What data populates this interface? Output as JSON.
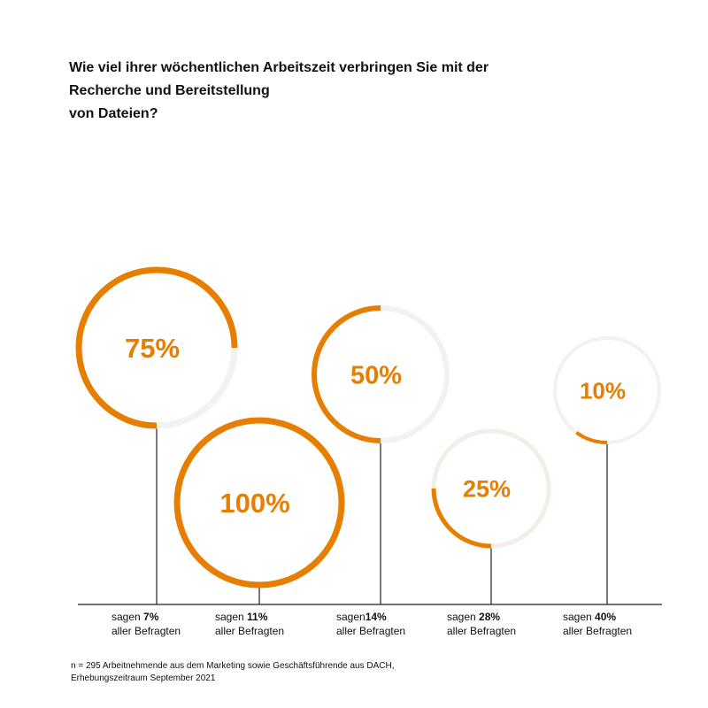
{
  "title_lines": [
    "Wie viel ihrer wöchentlichen Arbeitszeit verbringen Sie mit der",
    "Recherche und Bereitstellung",
    "von Dateien?"
  ],
  "colors": {
    "accent": "#E67E00",
    "track": "#F2F2F2",
    "track_alt": "#F4EEE8",
    "axis": "#222222"
  },
  "chart_data": {
    "type": "pie",
    "style": "progress-rings",
    "categories": [
      "75%",
      "100%",
      "50%",
      "25%",
      "10%"
    ],
    "values": [
      75,
      100,
      50,
      25,
      10
    ],
    "share_of_respondents": [
      7,
      11,
      14,
      28,
      40
    ],
    "captions": [
      {
        "pre": "sagen ",
        "value": "7%",
        "post": "aller Befragten"
      },
      {
        "pre": "sagen ",
        "value": "11%",
        "post": "aller Befragten"
      },
      {
        "pre": "sagen",
        "value": "14%",
        "post": "aller Befragten"
      },
      {
        "pre": "sagen ",
        "value": "28%",
        "post": "aller Befragten"
      },
      {
        "pre": "sagen ",
        "value": "40%",
        "post": "aller Befragten"
      }
    ],
    "ring_labels": [
      "75%",
      "100%",
      "50%",
      "25%",
      "10%"
    ]
  },
  "footnote_lines": [
    "n = 295 Arbeitnehmende aus dem Marketing sowie Geschäftsführende aus DACH,",
    "Erhebungszeitraum September 2021"
  ]
}
